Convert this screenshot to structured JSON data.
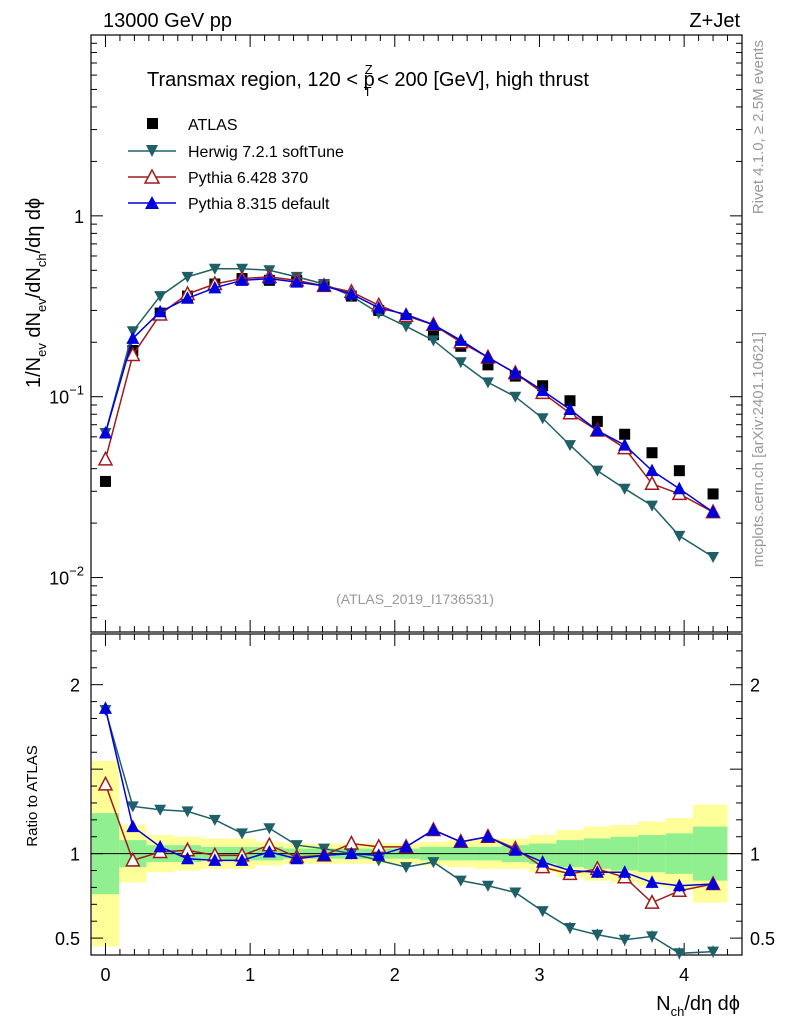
{
  "header": {
    "energy_label": "13000 GeV pp",
    "process_label": "Z+Jet"
  },
  "side_labels": {
    "rivet": "Rivet 4.1.0, ≥ 2.5M events",
    "mcplots": "mcplots.cern.ch [arXiv:2401.10621]"
  },
  "chart_data": {
    "type": "line",
    "title_parts": {
      "pre": "Transmax region, 120 < p",
      "sup": "Z",
      "sub": "T",
      "post": " < 200 [GeV], high thrust"
    },
    "analysis_id": "(ATLAS_2019_I1736531)",
    "ylabel_parts": [
      "1/N",
      "ev",
      " dN",
      "ev",
      "/dN",
      "ch",
      "/dη dϕ"
    ],
    "xlabel_parts": [
      "N",
      "ch",
      "/dη dϕ"
    ],
    "ratio_ylabel": "Ratio to ATLAS",
    "xlim": [
      -0.1,
      4.4
    ],
    "ylim": [
      0.005,
      10
    ],
    "ratio_ylim": [
      0.4,
      2.3
    ],
    "x_ticks": [
      "0",
      "1",
      "2",
      "3",
      "4"
    ],
    "y_ticks": [
      {
        "base": "10",
        "exp": "−2"
      },
      {
        "base": "10",
        "exp": "−1"
      },
      {
        "base": "1",
        "exp": ""
      }
    ],
    "ratio_ticks": [
      "0.5",
      "1",
      "2"
    ],
    "x": [
      0.0,
      0.189,
      0.378,
      0.567,
      0.756,
      0.944,
      1.133,
      1.322,
      1.511,
      1.7,
      1.889,
      2.078,
      2.267,
      2.456,
      2.644,
      2.833,
      3.022,
      3.211,
      3.4,
      3.589,
      3.778,
      3.967,
      4.2
    ],
    "series": [
      {
        "name": "ATLAS",
        "color": "#000000",
        "marker": "square",
        "values": [
          0.034,
          0.18,
          0.29,
          0.36,
          0.42,
          0.45,
          0.44,
          0.44,
          0.41,
          0.36,
          0.3,
          0.27,
          0.22,
          0.19,
          0.15,
          0.13,
          0.115,
          0.095,
          0.073,
          0.062,
          0.049,
          0.039,
          0.029
        ],
        "ratio": [
          1,
          1,
          1,
          1,
          1,
          1,
          1,
          1,
          1,
          1,
          1,
          1,
          1,
          1,
          1,
          1,
          1,
          1,
          1,
          1,
          1,
          1,
          1
        ]
      },
      {
        "name": "Herwig 7.2.1 softTune",
        "color": "#1f6068",
        "marker": "triangle-down",
        "values": [
          0.063,
          0.23,
          0.36,
          0.46,
          0.51,
          0.51,
          0.5,
          0.46,
          0.42,
          0.36,
          0.29,
          0.245,
          0.205,
          0.155,
          0.12,
          0.1,
          0.076,
          0.054,
          0.039,
          0.031,
          0.025,
          0.017,
          0.013
        ],
        "ratio": [
          1.85,
          1.28,
          1.26,
          1.25,
          1.2,
          1.12,
          1.15,
          1.05,
          1.03,
          1.0,
          0.96,
          0.92,
          0.95,
          0.84,
          0.81,
          0.77,
          0.66,
          0.56,
          0.52,
          0.49,
          0.51,
          0.41,
          0.42
        ]
      },
      {
        "name": "Pythia 6.428 370",
        "color": "#a01b1b",
        "marker": "triangle-up-open",
        "values": [
          0.045,
          0.17,
          0.285,
          0.37,
          0.42,
          0.45,
          0.46,
          0.44,
          0.41,
          0.38,
          0.32,
          0.28,
          0.25,
          0.2,
          0.165,
          0.135,
          0.105,
          0.081,
          0.065,
          0.052,
          0.033,
          0.029,
          0.023
        ],
        "ratio": [
          1.41,
          0.96,
          1.01,
          1.02,
          0.99,
          0.99,
          1.05,
          0.98,
          0.99,
          1.06,
          1.04,
          1.04,
          1.14,
          1.07,
          1.1,
          1.03,
          0.92,
          0.88,
          0.91,
          0.86,
          0.71,
          0.78,
          0.82
        ]
      },
      {
        "name": "Pythia 8.315 default",
        "color": "#0000dd",
        "marker": "triangle-up",
        "values": [
          0.063,
          0.21,
          0.295,
          0.35,
          0.4,
          0.44,
          0.45,
          0.43,
          0.41,
          0.37,
          0.31,
          0.285,
          0.25,
          0.205,
          0.165,
          0.135,
          0.108,
          0.085,
          0.065,
          0.054,
          0.039,
          0.031,
          0.023
        ],
        "ratio": [
          1.86,
          1.16,
          1.04,
          0.97,
          0.96,
          0.96,
          1.01,
          0.97,
          0.99,
          1.0,
          0.99,
          1.04,
          1.14,
          1.07,
          1.1,
          1.02,
          0.95,
          0.9,
          0.89,
          0.89,
          0.83,
          0.81,
          0.82
        ]
      }
    ],
    "ratio_bands": {
      "green_color": "#90f090",
      "yellow_color": "#ffff99",
      "bins": [
        {
          "x0": -0.105,
          "x1": 0.095,
          "g": [
            0.76,
            1.24
          ],
          "y": [
            0.45,
            1.55
          ]
        },
        {
          "x0": 0.095,
          "x1": 0.284,
          "g": [
            0.92,
            1.08
          ],
          "y": [
            0.83,
            1.17
          ]
        },
        {
          "x0": 0.284,
          "x1": 0.473,
          "g": [
            0.95,
            1.05
          ],
          "y": [
            0.89,
            1.11
          ]
        },
        {
          "x0": 0.473,
          "x1": 0.662,
          "g": [
            0.95,
            1.05
          ],
          "y": [
            0.9,
            1.1
          ]
        },
        {
          "x0": 0.662,
          "x1": 0.85,
          "g": [
            0.96,
            1.04
          ],
          "y": [
            0.91,
            1.09
          ]
        },
        {
          "x0": 0.85,
          "x1": 1.039,
          "g": [
            0.96,
            1.04
          ],
          "y": [
            0.91,
            1.09
          ]
        },
        {
          "x0": 1.039,
          "x1": 1.228,
          "g": [
            0.96,
            1.04
          ],
          "y": [
            0.93,
            1.07
          ]
        },
        {
          "x0": 1.228,
          "x1": 1.417,
          "g": [
            0.97,
            1.03
          ],
          "y": [
            0.94,
            1.06
          ]
        },
        {
          "x0": 1.417,
          "x1": 1.606,
          "g": [
            0.97,
            1.03
          ],
          "y": [
            0.94,
            1.06
          ]
        },
        {
          "x0": 1.606,
          "x1": 1.794,
          "g": [
            0.97,
            1.03
          ],
          "y": [
            0.94,
            1.06
          ]
        },
        {
          "x0": 1.794,
          "x1": 1.983,
          "g": [
            0.97,
            1.03
          ],
          "y": [
            0.94,
            1.06
          ]
        },
        {
          "x0": 1.983,
          "x1": 2.172,
          "g": [
            0.97,
            1.03
          ],
          "y": [
            0.94,
            1.06
          ]
        },
        {
          "x0": 2.172,
          "x1": 2.361,
          "g": [
            0.96,
            1.04
          ],
          "y": [
            0.93,
            1.07
          ]
        },
        {
          "x0": 2.361,
          "x1": 2.55,
          "g": [
            0.96,
            1.04
          ],
          "y": [
            0.92,
            1.08
          ]
        },
        {
          "x0": 2.55,
          "x1": 2.739,
          "g": [
            0.96,
            1.04
          ],
          "y": [
            0.91,
            1.09
          ]
        },
        {
          "x0": 2.739,
          "x1": 2.928,
          "g": [
            0.95,
            1.05
          ],
          "y": [
            0.91,
            1.09
          ]
        },
        {
          "x0": 2.928,
          "x1": 3.117,
          "g": [
            0.94,
            1.06
          ],
          "y": [
            0.89,
            1.11
          ]
        },
        {
          "x0": 3.117,
          "x1": 3.306,
          "g": [
            0.92,
            1.08
          ],
          "y": [
            0.86,
            1.14
          ]
        },
        {
          "x0": 3.306,
          "x1": 3.494,
          "g": [
            0.91,
            1.09
          ],
          "y": [
            0.84,
            1.16
          ]
        },
        {
          "x0": 3.494,
          "x1": 3.683,
          "g": [
            0.9,
            1.1
          ],
          "y": [
            0.83,
            1.17
          ]
        },
        {
          "x0": 3.683,
          "x1": 3.872,
          "g": [
            0.89,
            1.11
          ],
          "y": [
            0.81,
            1.19
          ]
        },
        {
          "x0": 3.872,
          "x1": 4.061,
          "g": [
            0.88,
            1.12
          ],
          "y": [
            0.79,
            1.21
          ]
        },
        {
          "x0": 4.061,
          "x1": 4.29,
          "g": [
            0.84,
            1.16
          ],
          "y": [
            0.71,
            1.29
          ]
        },
        {
          "x0": 4.29,
          "x1": 4.3,
          "g": [
            0.84,
            1.16
          ],
          "y": [
            0.71,
            1.29
          ]
        }
      ]
    }
  }
}
